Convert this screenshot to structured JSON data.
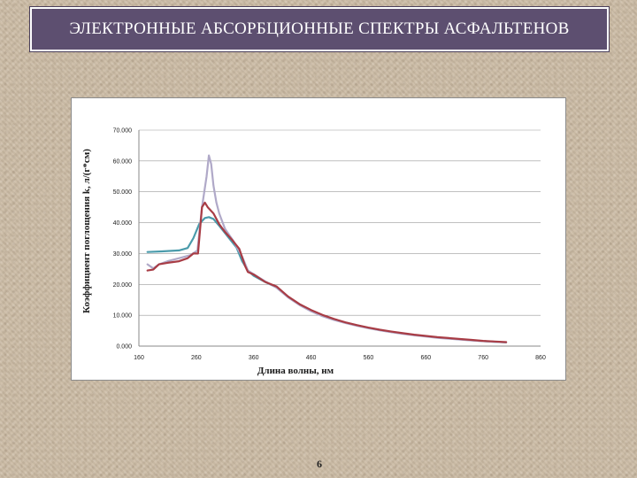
{
  "slide": {
    "title": "ЭЛЕКТРОННЫЕ АБСОРБЦИОННЫЕ СПЕКТРЫ АСФАЛЬТЕНОВ",
    "page_number": "6"
  },
  "chart_data": {
    "type": "line",
    "title": "",
    "xlabel": "Длина волны, нм",
    "ylabel": "Коэффициент поглощения k, л/(г*см)",
    "xlim": [
      160,
      860
    ],
    "ylim": [
      0,
      70
    ],
    "x_ticks": [
      "160",
      "260",
      "360",
      "460",
      "560",
      "660",
      "760",
      "860"
    ],
    "y_ticks": [
      "0.000",
      "10.000",
      "20.000",
      "30.000",
      "40.000",
      "50.000",
      "60.000",
      "70.000"
    ],
    "grid": "horizontal",
    "legend": "none",
    "series": [
      {
        "color": "#4a9bab",
        "points": [
          [
            175,
            30.5
          ],
          [
            200,
            30.7
          ],
          [
            230,
            31.0
          ],
          [
            245,
            31.8
          ],
          [
            255,
            35.0
          ],
          [
            265,
            39.5
          ],
          [
            275,
            41.5
          ],
          [
            282,
            41.8
          ],
          [
            290,
            41.2
          ],
          [
            300,
            39.0
          ],
          [
            315,
            35.5
          ],
          [
            330,
            32.0
          ],
          [
            340,
            27.5
          ],
          [
            350,
            24.5
          ],
          [
            360,
            22.8
          ],
          [
            380,
            20.8
          ],
          [
            400,
            19.0
          ],
          [
            420,
            16.0
          ],
          [
            440,
            13.5
          ],
          [
            460,
            11.6
          ],
          [
            480,
            10.0
          ],
          [
            500,
            8.7
          ],
          [
            520,
            7.6
          ],
          [
            540,
            6.7
          ],
          [
            560,
            5.9
          ],
          [
            580,
            5.2
          ],
          [
            600,
            4.6
          ],
          [
            620,
            4.1
          ],
          [
            640,
            3.6
          ],
          [
            660,
            3.2
          ],
          [
            680,
            2.8
          ],
          [
            700,
            2.5
          ],
          [
            720,
            2.2
          ],
          [
            740,
            1.9
          ],
          [
            760,
            1.6
          ],
          [
            780,
            1.4
          ],
          [
            800,
            1.2
          ]
        ]
      },
      {
        "color": "#b0a9c8",
        "points": [
          [
            175,
            26.5
          ],
          [
            185,
            25.2
          ],
          [
            195,
            26.5
          ],
          [
            210,
            27.5
          ],
          [
            230,
            28.5
          ],
          [
            250,
            29.5
          ],
          [
            262,
            31.0
          ],
          [
            270,
            45.0
          ],
          [
            278,
            55.0
          ],
          [
            282,
            61.8
          ],
          [
            286,
            59.0
          ],
          [
            290,
            52.0
          ],
          [
            295,
            46.5
          ],
          [
            300,
            43.0
          ],
          [
            310,
            38.0
          ],
          [
            325,
            34.0
          ],
          [
            340,
            29.0
          ],
          [
            350,
            24.5
          ],
          [
            360,
            23.3
          ],
          [
            380,
            21.0
          ],
          [
            400,
            18.9
          ],
          [
            420,
            15.8
          ],
          [
            440,
            13.3
          ],
          [
            460,
            11.3
          ],
          [
            480,
            9.7
          ],
          [
            500,
            8.5
          ],
          [
            520,
            7.5
          ],
          [
            540,
            6.6
          ],
          [
            560,
            5.8
          ],
          [
            580,
            5.1
          ],
          [
            600,
            4.5
          ],
          [
            620,
            4.0
          ],
          [
            640,
            3.5
          ],
          [
            660,
            3.1
          ],
          [
            680,
            2.7
          ],
          [
            700,
            2.4
          ],
          [
            720,
            2.1
          ],
          [
            740,
            1.8
          ],
          [
            760,
            1.6
          ],
          [
            780,
            1.4
          ],
          [
            800,
            1.2
          ]
        ]
      },
      {
        "color": "#a83c45",
        "points": [
          [
            175,
            24.5
          ],
          [
            185,
            24.8
          ],
          [
            195,
            26.5
          ],
          [
            210,
            27.0
          ],
          [
            230,
            27.5
          ],
          [
            245,
            28.5
          ],
          [
            255,
            30.0
          ],
          [
            263,
            30.0
          ],
          [
            270,
            45.0
          ],
          [
            275,
            46.5
          ],
          [
            280,
            45.0
          ],
          [
            290,
            43.0
          ],
          [
            300,
            39.5
          ],
          [
            310,
            37.0
          ],
          [
            322,
            34.5
          ],
          [
            335,
            31.5
          ],
          [
            345,
            26.0
          ],
          [
            350,
            24.0
          ],
          [
            360,
            23.2
          ],
          [
            380,
            20.8
          ],
          [
            400,
            19.3
          ],
          [
            420,
            16.1
          ],
          [
            440,
            13.6
          ],
          [
            460,
            11.7
          ],
          [
            480,
            10.1
          ],
          [
            500,
            8.8
          ],
          [
            520,
            7.7
          ],
          [
            540,
            6.8
          ],
          [
            560,
            6.0
          ],
          [
            580,
            5.3
          ],
          [
            600,
            4.7
          ],
          [
            620,
            4.2
          ],
          [
            640,
            3.7
          ],
          [
            660,
            3.3
          ],
          [
            680,
            2.9
          ],
          [
            700,
            2.6
          ],
          [
            720,
            2.3
          ],
          [
            740,
            2.0
          ],
          [
            760,
            1.7
          ],
          [
            780,
            1.5
          ],
          [
            800,
            1.3
          ]
        ]
      }
    ]
  }
}
